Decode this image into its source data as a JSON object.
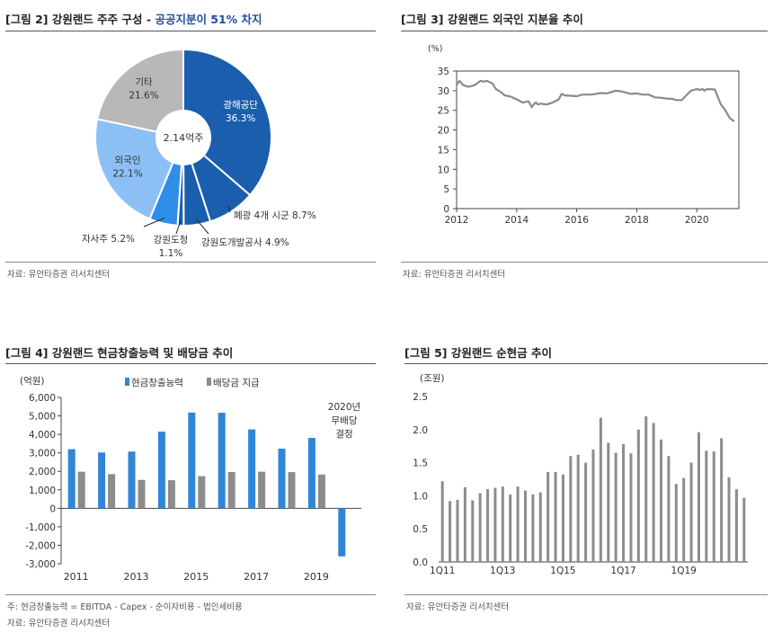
{
  "colors": {
    "blue_dark": "#1b5eae",
    "blue_mid": "#2f7ad0",
    "blue_light": "#8cc0f5",
    "grey_pie": "#b8b8b8",
    "bar_blue": "#2f86d6",
    "bar_grey": "#8c8c8c",
    "line_grey": "#8a8a8a",
    "title_accent": "#1f4e9c"
  },
  "panels": {
    "p2": {
      "title_prefix": "[그림 2] 강원랜드 주주 구성 - ",
      "title_highlight": "공공지분이 51% 차지",
      "source": "자료: 유안타증권 리서치센터"
    },
    "p3": {
      "title": "[그림 3] 강원랜드 외국인 지분율 추이",
      "source": "자료: 유안타증권 리서치센터"
    },
    "p4": {
      "title": "[그림 4] 강원랜드 현금창출능력 및 배당금 추이",
      "note": "주: 현금창출능력 = EBITDA - Capex - 순이자비용 - 법인세비용",
      "source": "자료: 유안타증권 리서치센터"
    },
    "p5": {
      "title": "[그림 5] 강원랜드 순현금 추이",
      "source": "자료: 유안타증권 리서치센터"
    }
  },
  "chart_data": [
    {
      "id": "shareholders",
      "type": "pie",
      "center_label": "2.14억주",
      "slices": [
        {
          "label": "광해공단",
          "value": 36.3,
          "value_label": "36.3%",
          "color": "#1b5eae"
        },
        {
          "label": "폐광 4개 시군",
          "value": 8.7,
          "value_label": "8.7%",
          "color": "#1b5eae"
        },
        {
          "label": "강원도개발공사",
          "value": 4.9,
          "value_label": "4.9%",
          "color": "#1b5eae"
        },
        {
          "label": "강원도청",
          "value": 1.1,
          "value_label": "1.1%",
          "color": "#1b5eae"
        },
        {
          "label": "자사주",
          "value": 5.2,
          "value_label": "5.2%",
          "color": "#2f8fe8"
        },
        {
          "label": "외국인",
          "value": 22.1,
          "value_label": "22.1%",
          "color": "#8cc0f5"
        },
        {
          "label": "기타",
          "value": 21.6,
          "value_label": "21.6%",
          "color": "#b8b8b8"
        }
      ]
    },
    {
      "id": "foreign_ownership",
      "type": "line",
      "unit_label": "(%)",
      "xlim": [
        2012,
        2021.4
      ],
      "ylim": [
        0,
        35
      ],
      "xticks": [
        2012,
        2014,
        2016,
        2018,
        2020
      ],
      "yticks": [
        0,
        5,
        10,
        15,
        20,
        25,
        30,
        35
      ],
      "series": [
        {
          "x": [
            2012.0,
            2012.1,
            2012.2,
            2012.3,
            2012.4,
            2012.6,
            2012.8,
            2012.9,
            2013.0,
            2013.2,
            2013.3,
            2013.5,
            2013.6,
            2013.8,
            2014.0,
            2014.2,
            2014.4,
            2014.5,
            2014.6,
            2014.65,
            2014.7,
            2014.8,
            2015.0,
            2015.2,
            2015.4,
            2015.5,
            2015.6,
            2015.8,
            2016.0,
            2016.2,
            2016.5,
            2016.8,
            2017.0,
            2017.3,
            2017.5,
            2017.8,
            2018.0,
            2018.2,
            2018.4,
            2018.6,
            2018.8,
            2019.0,
            2019.2,
            2019.3,
            2019.5,
            2019.8,
            2020.0,
            2020.1,
            2020.2,
            2020.25,
            2020.3,
            2020.4,
            2020.6,
            2020.8,
            2020.95,
            2021.1,
            2021.25
          ],
          "y": [
            31.5,
            32.5,
            31.5,
            31.2,
            31.0,
            31.4,
            32.5,
            32.3,
            32.5,
            31.8,
            30.5,
            29.5,
            28.8,
            28.5,
            27.8,
            27.0,
            27.3,
            25.8,
            26.8,
            27.0,
            26.5,
            26.7,
            26.5,
            27.0,
            27.8,
            29.2,
            28.8,
            28.7,
            28.6,
            29.0,
            29.0,
            29.4,
            29.3,
            30.0,
            29.8,
            29.2,
            29.3,
            29.0,
            29.0,
            28.3,
            28.2,
            28.0,
            27.9,
            27.6,
            27.6,
            30.0,
            30.4,
            30.2,
            30.4,
            30.0,
            30.3,
            30.4,
            30.3,
            26.5,
            25.0,
            23.0,
            22.2
          ]
        }
      ]
    },
    {
      "id": "cash_generation",
      "type": "bar",
      "unit_label": "(억원)",
      "categories": [
        "2011",
        "2012",
        "2013",
        "2014",
        "2015",
        "2016",
        "2017",
        "2018",
        "2019",
        "2020"
      ],
      "xtick_labels": [
        "2011",
        "2013",
        "2015",
        "2017",
        "2019"
      ],
      "ylim": [
        -3000,
        6000
      ],
      "yticks": [
        -3000,
        -2000,
        -1000,
        0,
        1000,
        2000,
        3000,
        4000,
        5000,
        6000
      ],
      "ytick_labels": [
        "-3,000",
        "-2,000",
        "-1,000",
        "0",
        "1,000",
        "2,000",
        "3,000",
        "4,000",
        "5,000",
        "6,000"
      ],
      "series": [
        {
          "name": "현금창출능력",
          "values": [
            3200,
            3020,
            3070,
            4150,
            5180,
            5170,
            4270,
            3230,
            3810,
            -2600
          ]
        },
        {
          "name": "배당금 지급",
          "values": [
            1980,
            1850,
            1540,
            1520,
            1740,
            1960,
            1980,
            1960,
            1830,
            0
          ]
        }
      ],
      "annotation": [
        "2020년",
        "무배당",
        "결정"
      ]
    },
    {
      "id": "net_cash",
      "type": "bar",
      "unit_label": "(조원)",
      "ylim": [
        0,
        2.5
      ],
      "yticks": [
        0.0,
        0.5,
        1.0,
        1.5,
        2.0,
        2.5
      ],
      "ytick_labels": [
        "0.0",
        "0.5",
        "1.0",
        "1.5",
        "2.0",
        "2.5"
      ],
      "xtick_labels": [
        "1Q11",
        "1Q13",
        "1Q15",
        "1Q17",
        "1Q19"
      ],
      "values": [
        1.22,
        0.92,
        0.94,
        1.13,
        0.93,
        1.04,
        1.1,
        1.12,
        1.14,
        1.02,
        1.14,
        1.08,
        1.02,
        1.05,
        1.36,
        1.36,
        1.32,
        1.6,
        1.62,
        1.5,
        1.7,
        2.18,
        1.8,
        1.65,
        1.78,
        1.64,
        2.0,
        2.2,
        2.1,
        1.85,
        1.6,
        1.18,
        1.27,
        1.5,
        1.96,
        1.68,
        1.67,
        1.87,
        1.28,
        1.1,
        0.97
      ]
    }
  ]
}
